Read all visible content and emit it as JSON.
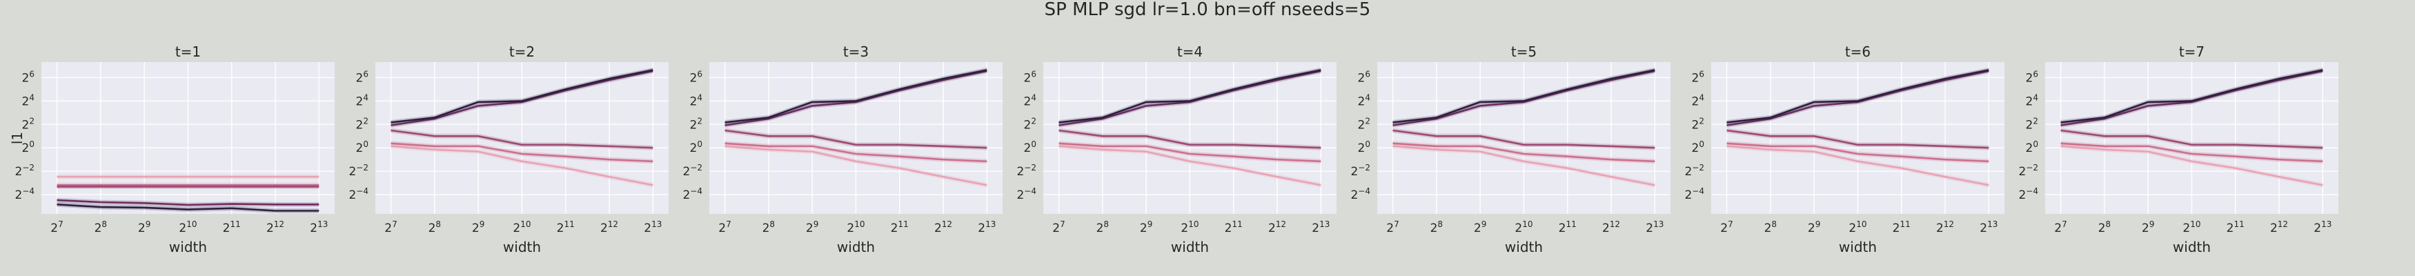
{
  "chart_data": {
    "type": "line",
    "title": "SP MLP sgd lr=1.0 bn=off nseeds=5",
    "xlabel": "width",
    "ylabel": "l1",
    "xscale": "log2",
    "yscale": "log2",
    "x": [
      128,
      256,
      512,
      1024,
      2048,
      4096,
      8192
    ],
    "xlim": [
      100,
      10500
    ],
    "ylim": [
      0.02,
      160
    ],
    "xtick_exponents": [
      7,
      8,
      9,
      10,
      11,
      12,
      13
    ],
    "ytick_exponents": [
      -4,
      -2,
      0,
      2,
      4,
      6
    ],
    "grid": true,
    "series_colors": [
      "#e8a3b3",
      "#cc6f8c",
      "#9c4a72",
      "#6a2e5e",
      "#2e1e3e"
    ],
    "panels": [
      {
        "title": "t=1",
        "series": [
          {
            "values": [
              0.18,
              0.18,
              0.18,
              0.18,
              0.18,
              0.18,
              0.18
            ]
          },
          {
            "values": [
              0.11,
              0.11,
              0.11,
              0.11,
              0.11,
              0.11,
              0.11
            ]
          },
          {
            "values": [
              0.1,
              0.1,
              0.1,
              0.1,
              0.1,
              0.1,
              0.1
            ]
          },
          {
            "values": [
              0.045,
              0.04,
              0.038,
              0.034,
              0.036,
              0.035,
              0.035
            ]
          },
          {
            "values": [
              0.035,
              0.03,
              0.029,
              0.026,
              0.028,
              0.024,
              0.024
            ]
          }
        ]
      },
      {
        "title": "t=2",
        "series": [
          {
            "values": [
              1.1,
              0.9,
              0.8,
              0.45,
              0.3,
              0.18,
              0.11
            ]
          },
          {
            "values": [
              1.3,
              1.1,
              1.1,
              0.7,
              0.6,
              0.5,
              0.45
            ]
          },
          {
            "values": [
              2.8,
              2.0,
              2.0,
              1.2,
              1.2,
              1.1,
              1.0
            ]
          },
          {
            "values": [
              3.8,
              5.6,
              12,
              15,
              30,
              55,
              95
            ]
          },
          {
            "values": [
              4.5,
              6.0,
              15,
              16,
              32,
              60,
              100
            ]
          }
        ]
      },
      {
        "title": "t=3",
        "series": [
          {
            "values": [
              1.1,
              0.9,
              0.8,
              0.45,
              0.3,
              0.18,
              0.11
            ]
          },
          {
            "values": [
              1.3,
              1.1,
              1.1,
              0.7,
              0.6,
              0.5,
              0.45
            ]
          },
          {
            "values": [
              2.8,
              2.0,
              2.0,
              1.2,
              1.2,
              1.1,
              1.0
            ]
          },
          {
            "values": [
              3.8,
              5.6,
              12,
              15,
              30,
              55,
              95
            ]
          },
          {
            "values": [
              4.5,
              6.0,
              15,
              16,
              32,
              60,
              100
            ]
          }
        ]
      },
      {
        "title": "t=4",
        "series": [
          {
            "values": [
              1.1,
              0.9,
              0.8,
              0.45,
              0.3,
              0.18,
              0.11
            ]
          },
          {
            "values": [
              1.3,
              1.1,
              1.1,
              0.7,
              0.6,
              0.5,
              0.45
            ]
          },
          {
            "values": [
              2.8,
              2.0,
              2.0,
              1.2,
              1.2,
              1.1,
              1.0
            ]
          },
          {
            "values": [
              3.8,
              5.6,
              12,
              15,
              30,
              55,
              95
            ]
          },
          {
            "values": [
              4.5,
              6.0,
              15,
              16,
              32,
              60,
              100
            ]
          }
        ]
      },
      {
        "title": "t=5",
        "series": [
          {
            "values": [
              1.1,
              0.9,
              0.8,
              0.45,
              0.3,
              0.18,
              0.11
            ]
          },
          {
            "values": [
              1.3,
              1.1,
              1.1,
              0.7,
              0.6,
              0.5,
              0.45
            ]
          },
          {
            "values": [
              2.8,
              2.0,
              2.0,
              1.2,
              1.2,
              1.1,
              1.0
            ]
          },
          {
            "values": [
              3.8,
              5.6,
              12,
              15,
              30,
              55,
              95
            ]
          },
          {
            "values": [
              4.5,
              6.0,
              15,
              16,
              32,
              60,
              100
            ]
          }
        ]
      },
      {
        "title": "t=6",
        "series": [
          {
            "values": [
              1.1,
              0.9,
              0.8,
              0.45,
              0.3,
              0.18,
              0.11
            ]
          },
          {
            "values": [
              1.3,
              1.1,
              1.1,
              0.7,
              0.6,
              0.5,
              0.45
            ]
          },
          {
            "values": [
              2.8,
              2.0,
              2.0,
              1.2,
              1.2,
              1.1,
              1.0
            ]
          },
          {
            "values": [
              3.8,
              5.6,
              12,
              15,
              30,
              55,
              95
            ]
          },
          {
            "values": [
              4.5,
              6.0,
              15,
              16,
              32,
              60,
              100
            ]
          }
        ]
      },
      {
        "title": "t=7",
        "series": [
          {
            "values": [
              1.1,
              0.9,
              0.8,
              0.45,
              0.3,
              0.18,
              0.11
            ]
          },
          {
            "values": [
              1.3,
              1.1,
              1.1,
              0.7,
              0.6,
              0.5,
              0.45
            ]
          },
          {
            "values": [
              2.8,
              2.0,
              2.0,
              1.2,
              1.2,
              1.1,
              1.0
            ]
          },
          {
            "values": [
              3.8,
              5.6,
              12,
              15,
              30,
              55,
              95
            ]
          },
          {
            "values": [
              4.5,
              6.0,
              15,
              16,
              32,
              60,
              100
            ]
          }
        ]
      }
    ]
  }
}
